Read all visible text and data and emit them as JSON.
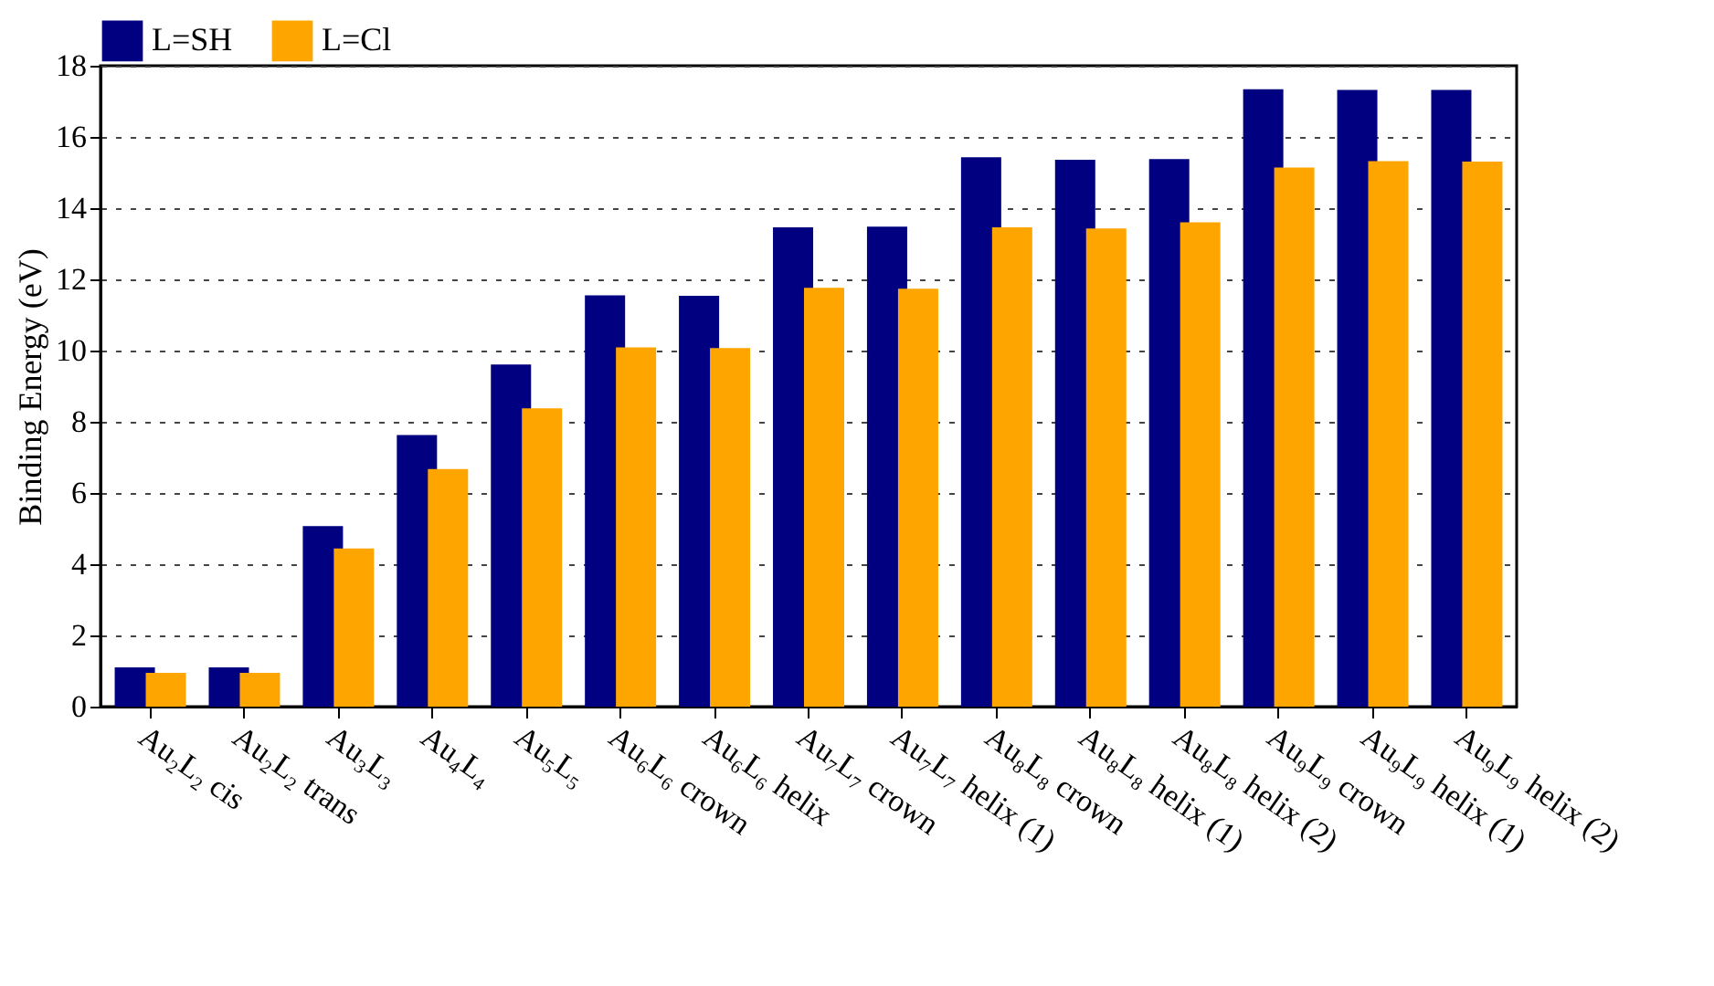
{
  "chart_data": {
    "type": "bar",
    "ylabel": "Binding Energy (eV)",
    "categories": [
      "Au₂L₂ cis",
      "Au₂L₂ trans",
      "Au₃L₃",
      "Au₄L₄",
      "Au₅L₅",
      "Au₆L₆ crown",
      "Au₆L₆ helix",
      "Au₇L₇ crown",
      "Au₇L₇ helix (1)",
      "Au₈L₈ crown",
      "Au₈L₈ helix (1)",
      "Au₈L₈ helix (2)",
      "Au₉L₉ crown",
      "Au₉L₉ helix (1)",
      "Au₉L₉ helix (2)"
    ],
    "series": [
      {
        "name": "L=SH",
        "color": "#000080",
        "values": [
          1.1,
          1.1,
          5.07,
          7.63,
          9.61,
          11.55,
          11.54,
          13.46,
          13.48,
          15.43,
          15.36,
          15.38,
          17.34,
          17.32,
          17.32
        ]
      },
      {
        "name": "L=Cl",
        "color": "#ffa500",
        "values": [
          0.95,
          0.95,
          4.44,
          6.67,
          8.38,
          10.09,
          10.07,
          11.76,
          11.74,
          13.46,
          13.43,
          13.6,
          15.14,
          15.32,
          15.31
        ]
      }
    ],
    "ylim": [
      0,
      18
    ],
    "yticks": [
      0,
      2,
      4,
      6,
      8,
      10,
      12,
      14,
      16,
      18
    ],
    "grid": "y",
    "legend": "top"
  }
}
